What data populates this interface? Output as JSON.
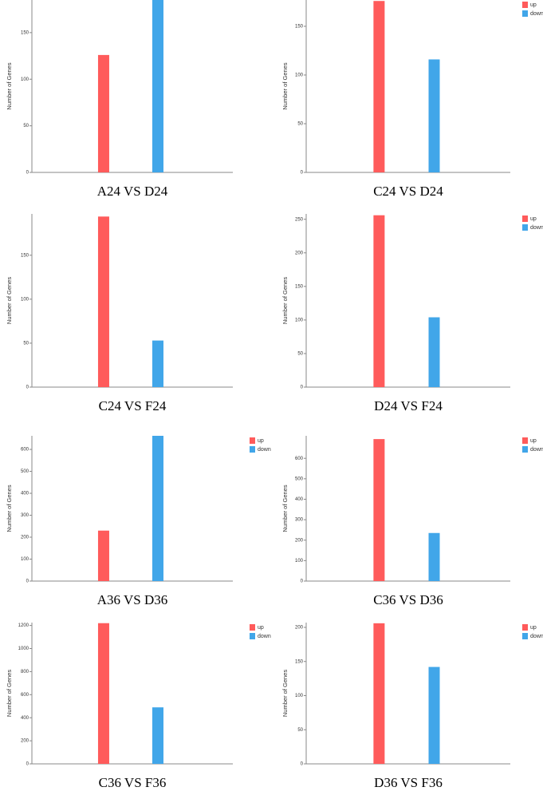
{
  "chart_data": [
    {
      "type": "bar",
      "title": "A24 VS D24",
      "y_label": "Number of Genes",
      "ylim": [
        0,
        185
      ],
      "yticks": [
        0,
        50,
        100,
        150
      ],
      "legend": false,
      "series": [
        {
          "color": "#ff5b5b",
          "values": [
            126
          ]
        },
        {
          "color": "#41a6e9",
          "values": [
            185
          ]
        }
      ]
    },
    {
      "type": "bar",
      "title": "C24 VS D24",
      "y_label": "Number of Genes",
      "ylim": [
        0,
        177
      ],
      "yticks": [
        0,
        50,
        100,
        150
      ],
      "legend": "top-right",
      "series": [
        {
          "name": "up",
          "color": "#ff5b5b",
          "values": [
            176
          ]
        },
        {
          "name": "down",
          "color": "#41a6e9",
          "values": [
            116
          ]
        }
      ]
    },
    {
      "type": "bar",
      "title": "C24 VS F24",
      "y_label": "Number of Genes",
      "ylim": [
        0,
        197
      ],
      "yticks": [
        0,
        50,
        100,
        150
      ],
      "legend": false,
      "series": [
        {
          "color": "#ff5b5b",
          "values": [
            194
          ]
        },
        {
          "color": "#41a6e9",
          "values": [
            53
          ]
        }
      ]
    },
    {
      "type": "bar",
      "title": "D24 VS F24",
      "y_label": "Number of Genes",
      "ylim": [
        0,
        258
      ],
      "yticks": [
        0,
        50,
        100,
        150,
        200,
        250
      ],
      "legend": "top-right",
      "series": [
        {
          "name": "up",
          "color": "#ff5b5b",
          "values": [
            256
          ]
        },
        {
          "name": "down",
          "color": "#41a6e9",
          "values": [
            104
          ]
        }
      ]
    },
    {
      "type": "bar",
      "title": "A36 VS D36",
      "y_label": "Number of Genes",
      "ylim": [
        0,
        662
      ],
      "yticks": [
        0,
        100,
        200,
        300,
        400,
        500,
        600
      ],
      "legend": "top-right",
      "series": [
        {
          "name": "up",
          "color": "#ff5b5b",
          "values": [
            230
          ]
        },
        {
          "name": "down",
          "color": "#41a6e9",
          "values": [
            662
          ]
        }
      ]
    },
    {
      "type": "bar",
      "title": "C36 VS D36",
      "y_label": "Number of Genes",
      "ylim": [
        0,
        710
      ],
      "yticks": [
        0,
        100,
        200,
        300,
        400,
        500,
        600
      ],
      "legend": "top-right",
      "series": [
        {
          "name": "up",
          "color": "#ff5b5b",
          "values": [
            694
          ]
        },
        {
          "name": "down",
          "color": "#41a6e9",
          "values": [
            235
          ]
        }
      ]
    },
    {
      "type": "bar",
      "title": "C36 VS F36",
      "y_label": "Number of Genes",
      "ylim": [
        0,
        1225
      ],
      "yticks": [
        0,
        200,
        400,
        600,
        800,
        1000,
        1200
      ],
      "legend": "top-right",
      "series": [
        {
          "name": "up",
          "color": "#ff5b5b",
          "values": [
            1220
          ]
        },
        {
          "name": "down",
          "color": "#41a6e9",
          "values": [
            490
          ]
        }
      ]
    },
    {
      "type": "bar",
      "title": "D36 VS F36",
      "y_label": "Number of Genes",
      "ylim": [
        0,
        207
      ],
      "yticks": [
        0,
        50,
        100,
        150,
        200
      ],
      "legend": "top-right",
      "series": [
        {
          "name": "up",
          "color": "#ff5b5b",
          "values": [
            206
          ]
        },
        {
          "name": "down",
          "color": "#41a6e9",
          "values": [
            142
          ]
        }
      ]
    }
  ]
}
